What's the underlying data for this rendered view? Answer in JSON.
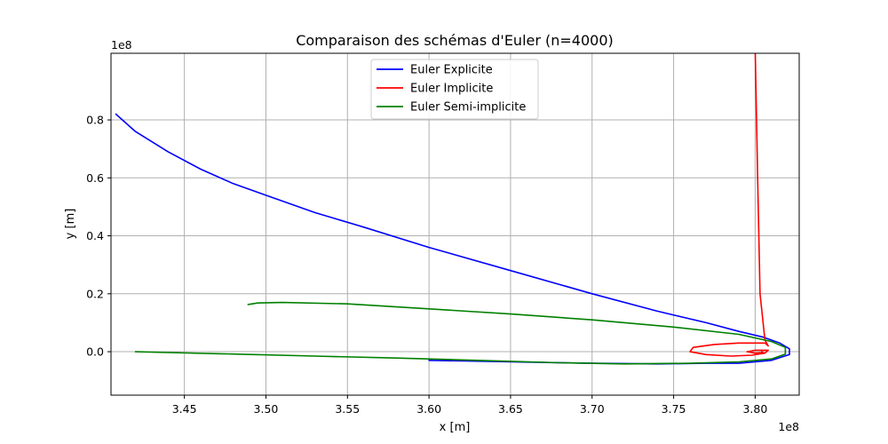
{
  "chart_data": {
    "type": "line",
    "title": "Comparaison des schémas d'Euler (n=4000)",
    "xlabel": "x [m]",
    "ylabel": "y [m]",
    "x_offset_label": "1e8",
    "y_offset_label": "1e8",
    "xlim": [
      3.405,
      3.827
    ],
    "ylim": [
      -0.15,
      1.03
    ],
    "x_ticks": [
      3.45,
      3.5,
      3.55,
      3.6,
      3.65,
      3.7,
      3.75,
      3.8
    ],
    "x_tick_labels": [
      "3.45",
      "3.50",
      "3.55",
      "3.60",
      "3.65",
      "3.70",
      "3.75",
      "3.80"
    ],
    "y_ticks": [
      0.0,
      0.2,
      0.4,
      0.6,
      0.8
    ],
    "y_tick_labels": [
      "0.0",
      "0.2",
      "0.4",
      "0.6",
      "0.8"
    ],
    "grid": true,
    "legend_position": "upper center",
    "series": [
      {
        "name": "Euler Explicite",
        "color": "#0000ff",
        "x": [
          3.408,
          3.42,
          3.44,
          3.46,
          3.48,
          3.5,
          3.53,
          3.56,
          3.6,
          3.65,
          3.7,
          3.74,
          3.77,
          3.79,
          3.805,
          3.815,
          3.821,
          3.821,
          3.81,
          3.79,
          3.77,
          3.74,
          3.7,
          3.65,
          3.6
        ],
        "y": [
          0.82,
          0.76,
          0.69,
          0.63,
          0.58,
          0.54,
          0.48,
          0.43,
          0.36,
          0.28,
          0.2,
          0.14,
          0.1,
          0.07,
          0.05,
          0.03,
          0.01,
          -0.01,
          -0.03,
          -0.04,
          -0.04,
          -0.042,
          -0.04,
          -0.035,
          -0.03
        ]
      },
      {
        "name": "Euler Implicite",
        "color": "#ff0000",
        "x": [
          3.8,
          3.8015,
          3.803,
          3.806,
          3.808,
          3.806,
          3.8,
          3.79,
          3.775,
          3.762,
          3.76,
          3.77,
          3.785,
          3.798,
          3.806,
          3.808,
          3.8,
          3.795,
          3.8,
          3.805,
          3.804
        ],
        "y": [
          1.05,
          0.6,
          0.2,
          0.04,
          0.02,
          0.03,
          0.03,
          0.03,
          0.025,
          0.015,
          0.0,
          -0.01,
          -0.015,
          -0.012,
          -0.005,
          0.005,
          0.005,
          0.0,
          -0.005,
          -0.003,
          0.0
        ]
      },
      {
        "name": "Euler Semi-implicite",
        "color": "#008000",
        "x": [
          3.489,
          3.495,
          3.51,
          3.55,
          3.6,
          3.65,
          3.7,
          3.75,
          3.79,
          3.81,
          3.8185,
          3.8185,
          3.81,
          3.79,
          3.76,
          3.72,
          3.68,
          3.63,
          3.58,
          3.53,
          3.48,
          3.44,
          3.42
        ],
        "y": [
          0.163,
          0.168,
          0.17,
          0.165,
          0.148,
          0.13,
          0.11,
          0.085,
          0.06,
          0.035,
          0.015,
          -0.008,
          -0.025,
          -0.035,
          -0.04,
          -0.042,
          -0.038,
          -0.03,
          -0.022,
          -0.015,
          -0.008,
          -0.003,
          0.0
        ]
      }
    ]
  }
}
